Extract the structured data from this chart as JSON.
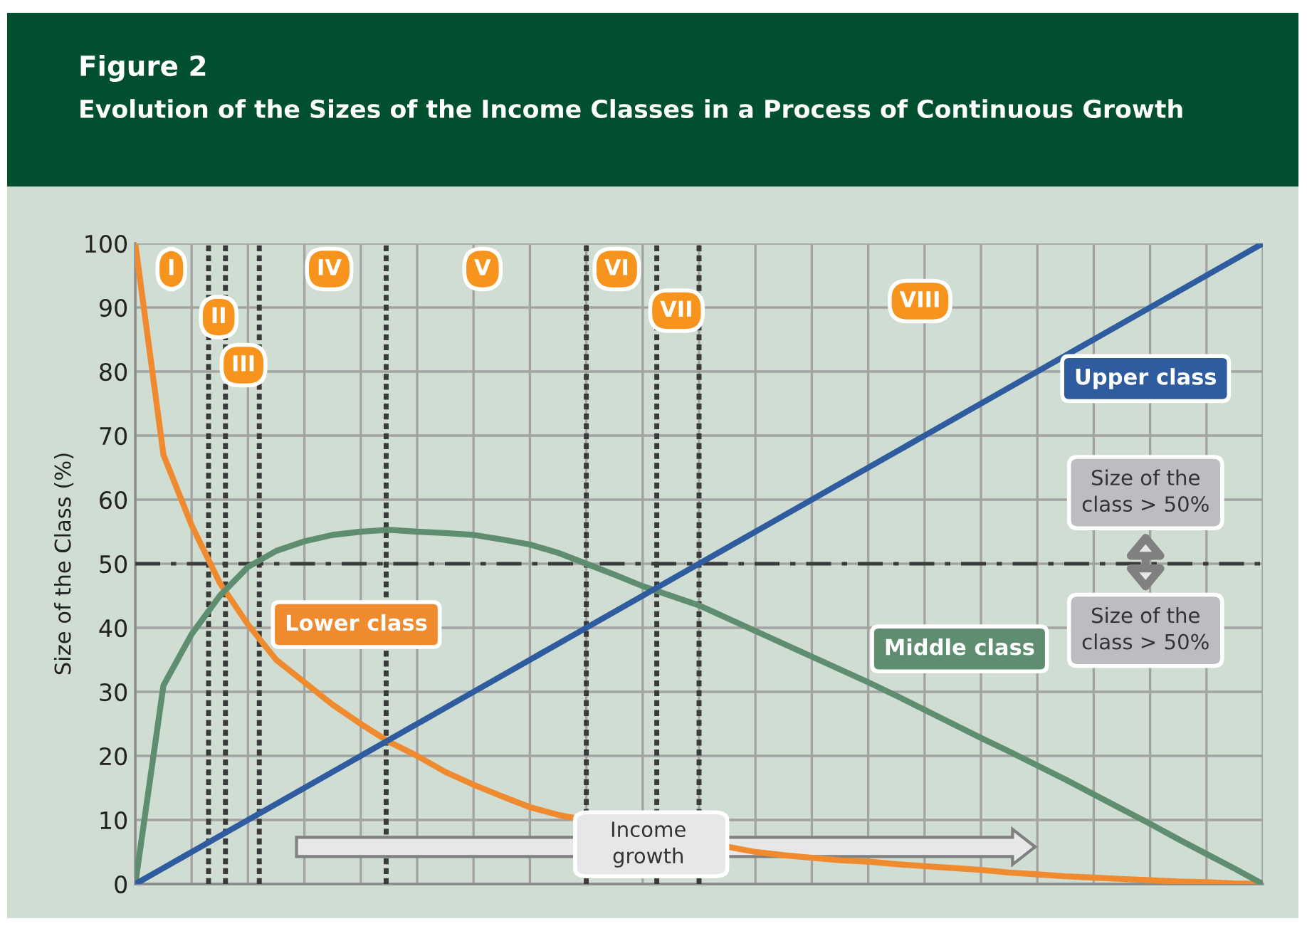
{
  "chart_data": {
    "type": "line",
    "title": "Figure 2",
    "subtitle": "Evolution of the Sizes of the Income Classes in a Process of Continuous Growth",
    "ylabel": "Size of the Class (%)",
    "categories": [
      null,
      null,
      null,
      null,
      null,
      null,
      null,
      null,
      null,
      null,
      null,
      null,
      null,
      null,
      null,
      null,
      null,
      null,
      null,
      null,
      null,
      null,
      null,
      null,
      null,
      null,
      null,
      null,
      null,
      null,
      null,
      null,
      null,
      null,
      null,
      null,
      null,
      null,
      null,
      null,
      null
    ],
    "series": [
      {
        "name": "Lower class",
        "color": "#f08a2e",
        "values": [
          100,
          67,
          56,
          47,
          40.5,
          35,
          31.5,
          28,
          25,
          22.2,
          20,
          17.5,
          15.5,
          13.7,
          12,
          10.8,
          null,
          null,
          null,
          null,
          null,
          null,
          5,
          4.5,
          4.1,
          3.7,
          3.5,
          3.1,
          2.8,
          2.5,
          2.2,
          1.8,
          1.5,
          1.2,
          1,
          0.8,
          0.6,
          0.4,
          0.3,
          0.1,
          0
        ]
      },
      {
        "name": "Middle class",
        "color": "#5f8d6f",
        "values": [
          0,
          31,
          39,
          45,
          49.5,
          52,
          53.5,
          54.5,
          55,
          55.3,
          55,
          54.8,
          54.5,
          53.8,
          53,
          51.7,
          50,
          48.3,
          46.5,
          45,
          43.5,
          41.5,
          39.5,
          37.5,
          35.5,
          33.5,
          31.5,
          29.4,
          27.2,
          25,
          22.8,
          20.7,
          18.5,
          16.3,
          14,
          11.7,
          9.4,
          7,
          4.7,
          2.4,
          0
        ]
      },
      {
        "name": "Upper class",
        "color": "#2e5c9e",
        "values": [
          0,
          2.5,
          5,
          7.5,
          10,
          12.5,
          15,
          17.5,
          20,
          22.5,
          25,
          27.5,
          30,
          32.5,
          35,
          37.5,
          40,
          42.5,
          45,
          47.5,
          50,
          52.5,
          55,
          57.5,
          60,
          62.5,
          65,
          67.5,
          70,
          72.5,
          75,
          77.5,
          80,
          82.5,
          85,
          87.5,
          90,
          92.5,
          95,
          97.5,
          100
        ]
      }
    ],
    "ylim": [
      0,
      100
    ],
    "yticks": [
      0,
      10,
      20,
      30,
      40,
      50,
      60,
      70,
      80,
      90,
      100
    ],
    "tick_labels": "y",
    "grid": true,
    "legend": false,
    "marker": "none",
    "line_style": "solid",
    "ref_lines": [
      {
        "axis": "y",
        "value": 50,
        "color": "#3a3a3a",
        "line_style": "dashed"
      }
    ],
    "annotations": [
      "I",
      "II",
      "III",
      "IV",
      "V",
      "VI",
      "VII",
      "VIII",
      "Size of the class > 50%",
      "Size of the class > 50%",
      "Income growth"
    ]
  }
}
